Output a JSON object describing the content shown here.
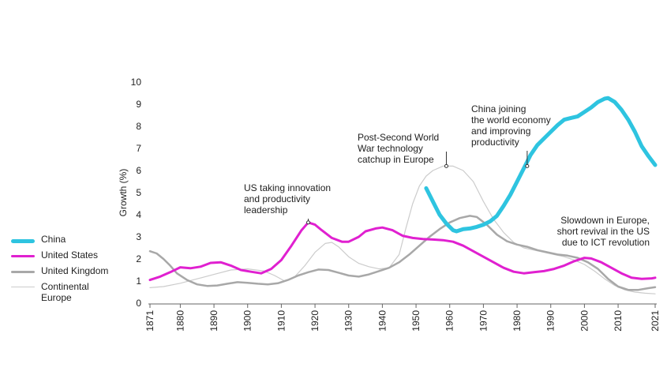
{
  "chart_data": {
    "type": "line",
    "ylabel": "Growth (%)",
    "xlabel": "",
    "xlim": [
      1871,
      2021
    ],
    "ylim": [
      0,
      10
    ],
    "yticks": [
      0,
      1,
      2,
      3,
      4,
      5,
      6,
      7,
      8,
      9,
      10
    ],
    "xticks": [
      1871,
      1880,
      1890,
      1900,
      1910,
      1920,
      1930,
      1940,
      1950,
      1960,
      1970,
      1980,
      1990,
      2000,
      2010,
      2021
    ],
    "grid": false,
    "legend_position": "left",
    "series": [
      {
        "name": "China",
        "color": "#2ec4e0",
        "width": 5,
        "points": [
          [
            1953,
            5.2
          ],
          [
            1955,
            4.6
          ],
          [
            1957,
            4.0
          ],
          [
            1959,
            3.6
          ],
          [
            1961,
            3.3
          ],
          [
            1962,
            3.25
          ],
          [
            1964,
            3.35
          ],
          [
            1966,
            3.38
          ],
          [
            1968,
            3.45
          ],
          [
            1970,
            3.55
          ],
          [
            1972,
            3.7
          ],
          [
            1974,
            3.95
          ],
          [
            1976,
            4.4
          ],
          [
            1978,
            4.9
          ],
          [
            1980,
            5.5
          ],
          [
            1982,
            6.1
          ],
          [
            1984,
            6.7
          ],
          [
            1986,
            7.15
          ],
          [
            1988,
            7.45
          ],
          [
            1990,
            7.75
          ],
          [
            1992,
            8.05
          ],
          [
            1994,
            8.3
          ],
          [
            1996,
            8.38
          ],
          [
            1998,
            8.45
          ],
          [
            2000,
            8.65
          ],
          [
            2002,
            8.85
          ],
          [
            2004,
            9.1
          ],
          [
            2006,
            9.25
          ],
          [
            2007,
            9.28
          ],
          [
            2009,
            9.1
          ],
          [
            2011,
            8.75
          ],
          [
            2013,
            8.3
          ],
          [
            2015,
            7.75
          ],
          [
            2017,
            7.1
          ],
          [
            2019,
            6.65
          ],
          [
            2021,
            6.25
          ]
        ]
      },
      {
        "name": "United States",
        "color": "#e020d0",
        "width": 3,
        "points": [
          [
            1871,
            1.05
          ],
          [
            1874,
            1.2
          ],
          [
            1877,
            1.4
          ],
          [
            1880,
            1.62
          ],
          [
            1883,
            1.58
          ],
          [
            1886,
            1.65
          ],
          [
            1889,
            1.82
          ],
          [
            1892,
            1.85
          ],
          [
            1895,
            1.7
          ],
          [
            1898,
            1.5
          ],
          [
            1901,
            1.42
          ],
          [
            1904,
            1.35
          ],
          [
            1907,
            1.55
          ],
          [
            1910,
            1.95
          ],
          [
            1913,
            2.6
          ],
          [
            1916,
            3.3
          ],
          [
            1918,
            3.65
          ],
          [
            1920,
            3.55
          ],
          [
            1922,
            3.3
          ],
          [
            1925,
            2.95
          ],
          [
            1928,
            2.78
          ],
          [
            1930,
            2.78
          ],
          [
            1933,
            3.0
          ],
          [
            1935,
            3.25
          ],
          [
            1938,
            3.38
          ],
          [
            1940,
            3.42
          ],
          [
            1943,
            3.3
          ],
          [
            1946,
            3.05
          ],
          [
            1949,
            2.95
          ],
          [
            1952,
            2.9
          ],
          [
            1955,
            2.88
          ],
          [
            1958,
            2.85
          ],
          [
            1961,
            2.78
          ],
          [
            1964,
            2.6
          ],
          [
            1967,
            2.35
          ],
          [
            1970,
            2.1
          ],
          [
            1973,
            1.85
          ],
          [
            1976,
            1.6
          ],
          [
            1979,
            1.42
          ],
          [
            1982,
            1.35
          ],
          [
            1985,
            1.4
          ],
          [
            1988,
            1.45
          ],
          [
            1991,
            1.55
          ],
          [
            1994,
            1.7
          ],
          [
            1997,
            1.9
          ],
          [
            2000,
            2.05
          ],
          [
            2002,
            2.02
          ],
          [
            2005,
            1.85
          ],
          [
            2008,
            1.6
          ],
          [
            2011,
            1.35
          ],
          [
            2014,
            1.15
          ],
          [
            2017,
            1.1
          ],
          [
            2020,
            1.12
          ],
          [
            2021,
            1.15
          ]
        ]
      },
      {
        "name": "United Kingdom",
        "color": "#a8a8a8",
        "width": 2.5,
        "points": [
          [
            1871,
            2.35
          ],
          [
            1873,
            2.25
          ],
          [
            1875,
            2.0
          ],
          [
            1877,
            1.7
          ],
          [
            1879,
            1.35
          ],
          [
            1882,
            1.05
          ],
          [
            1885,
            0.85
          ],
          [
            1888,
            0.78
          ],
          [
            1891,
            0.8
          ],
          [
            1894,
            0.88
          ],
          [
            1897,
            0.95
          ],
          [
            1900,
            0.92
          ],
          [
            1903,
            0.88
          ],
          [
            1906,
            0.85
          ],
          [
            1909,
            0.9
          ],
          [
            1912,
            1.05
          ],
          [
            1915,
            1.25
          ],
          [
            1918,
            1.4
          ],
          [
            1921,
            1.52
          ],
          [
            1924,
            1.5
          ],
          [
            1927,
            1.38
          ],
          [
            1930,
            1.25
          ],
          [
            1933,
            1.2
          ],
          [
            1936,
            1.3
          ],
          [
            1939,
            1.45
          ],
          [
            1942,
            1.6
          ],
          [
            1945,
            1.85
          ],
          [
            1948,
            2.2
          ],
          [
            1951,
            2.6
          ],
          [
            1954,
            3.0
          ],
          [
            1957,
            3.35
          ],
          [
            1960,
            3.65
          ],
          [
            1963,
            3.85
          ],
          [
            1966,
            3.95
          ],
          [
            1968,
            3.9
          ],
          [
            1971,
            3.55
          ],
          [
            1974,
            3.1
          ],
          [
            1977,
            2.8
          ],
          [
            1980,
            2.65
          ],
          [
            1983,
            2.55
          ],
          [
            1986,
            2.4
          ],
          [
            1989,
            2.3
          ],
          [
            1992,
            2.2
          ],
          [
            1995,
            2.15
          ],
          [
            1998,
            2.05
          ],
          [
            2001,
            1.85
          ],
          [
            2004,
            1.55
          ],
          [
            2007,
            1.1
          ],
          [
            2010,
            0.75
          ],
          [
            2013,
            0.6
          ],
          [
            2016,
            0.6
          ],
          [
            2019,
            0.68
          ],
          [
            2021,
            0.72
          ]
        ]
      },
      {
        "name": "Continental Europe",
        "color": "#cccccc",
        "width": 1.2,
        "points": [
          [
            1871,
            0.7
          ],
          [
            1875,
            0.75
          ],
          [
            1880,
            0.9
          ],
          [
            1885,
            1.1
          ],
          [
            1890,
            1.3
          ],
          [
            1895,
            1.5
          ],
          [
            1900,
            1.55
          ],
          [
            1905,
            1.45
          ],
          [
            1908,
            1.25
          ],
          [
            1911,
            1.0
          ],
          [
            1914,
            1.2
          ],
          [
            1917,
            1.7
          ],
          [
            1920,
            2.3
          ],
          [
            1923,
            2.7
          ],
          [
            1925,
            2.75
          ],
          [
            1927,
            2.55
          ],
          [
            1930,
            2.1
          ],
          [
            1933,
            1.8
          ],
          [
            1936,
            1.65
          ],
          [
            1939,
            1.55
          ],
          [
            1942,
            1.6
          ],
          [
            1945,
            2.2
          ],
          [
            1947,
            3.4
          ],
          [
            1949,
            4.5
          ],
          [
            1951,
            5.3
          ],
          [
            1953,
            5.75
          ],
          [
            1955,
            6.0
          ],
          [
            1958,
            6.2
          ],
          [
            1961,
            6.2
          ],
          [
            1964,
            6.0
          ],
          [
            1967,
            5.5
          ],
          [
            1970,
            4.6
          ],
          [
            1973,
            3.8
          ],
          [
            1976,
            3.2
          ],
          [
            1979,
            2.75
          ],
          [
            1982,
            2.5
          ],
          [
            1985,
            2.4
          ],
          [
            1988,
            2.3
          ],
          [
            1991,
            2.2
          ],
          [
            1994,
            2.1
          ],
          [
            1997,
            1.95
          ],
          [
            2000,
            1.75
          ],
          [
            2003,
            1.45
          ],
          [
            2006,
            1.1
          ],
          [
            2009,
            0.8
          ],
          [
            2012,
            0.6
          ],
          [
            2015,
            0.5
          ],
          [
            2018,
            0.45
          ],
          [
            2021,
            0.42
          ]
        ]
      }
    ],
    "annotations": [
      {
        "lines": [
          "US taking innovation",
          "and productivity",
          "leadership"
        ],
        "year": 1918,
        "value": 3.65
      },
      {
        "lines": [
          "Post-Second World",
          "War technology",
          "catchup in Europe"
        ],
        "year": 1959,
        "value": 6.2
      },
      {
        "lines": [
          "China joining",
          "the world economy",
          "and improving",
          "productivity"
        ],
        "year": 1983,
        "value": 6.2
      },
      {
        "lines": [
          "Slowdown in Europe,",
          "short revival in the US",
          "due to ICT revolution"
        ],
        "year": null,
        "value": null
      }
    ]
  }
}
